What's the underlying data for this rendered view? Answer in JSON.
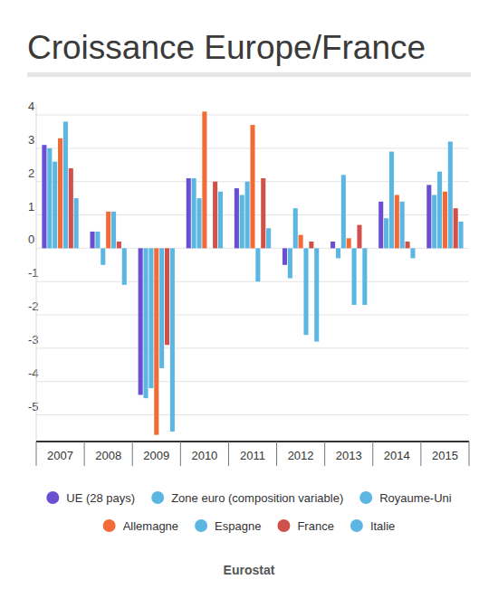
{
  "chart_data": {
    "type": "bar",
    "title": "Croissance Europe/France",
    "source": "Eurostat",
    "categories": [
      "2007",
      "2008",
      "2009",
      "2010",
      "2011",
      "2012",
      "2013",
      "2014",
      "2015"
    ],
    "series": [
      {
        "name": "UE (28 pays)",
        "color": "#6a4fd3",
        "values": [
          3.1,
          0.5,
          -4.4,
          2.1,
          1.8,
          -0.5,
          0.2,
          1.4,
          1.9
        ]
      },
      {
        "name": "Zone euro (composition variable)",
        "color": "#5cb6e2",
        "values": [
          3.0,
          0.5,
          -4.5,
          2.1,
          1.6,
          -0.9,
          -0.3,
          0.9,
          1.6
        ]
      },
      {
        "name": "Royaume-Uni",
        "color": "#5cb6e2",
        "values": [
          2.6,
          -0.5,
          -4.2,
          1.5,
          2.0,
          1.2,
          2.2,
          2.9,
          2.3
        ]
      },
      {
        "name": "Allemagne",
        "color": "#f26a36",
        "values": [
          3.3,
          1.1,
          -5.6,
          4.1,
          3.7,
          0.4,
          0.3,
          1.6,
          1.7
        ]
      },
      {
        "name": "Espagne",
        "color": "#5cb6e2",
        "values": [
          3.8,
          1.1,
          -3.6,
          0.0,
          -1.0,
          -2.6,
          -1.7,
          1.4,
          3.2
        ]
      },
      {
        "name": "France",
        "color": "#d0504a",
        "values": [
          2.4,
          0.2,
          -2.9,
          2.0,
          2.1,
          0.2,
          0.7,
          0.2,
          1.2
        ]
      },
      {
        "name": "Italie",
        "color": "#5cb6e2",
        "values": [
          1.5,
          -1.1,
          -5.5,
          1.7,
          0.6,
          -2.8,
          -1.7,
          -0.3,
          0.8
        ]
      }
    ],
    "ylim": [
      -5.8,
      4.3
    ],
    "yticks": [
      -5,
      -4,
      -3,
      -2,
      -1,
      0,
      1,
      2,
      3,
      4
    ],
    "grid": true,
    "legend": "bottom"
  }
}
